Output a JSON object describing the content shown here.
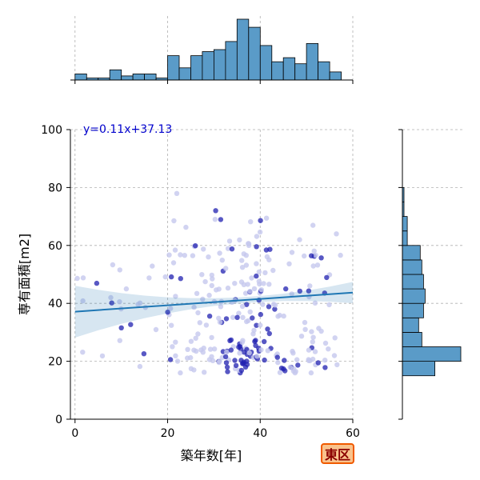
{
  "chart_data": {
    "type": "scatter",
    "xlabel": "築年数[年]",
    "ylabel": "専有面積[m2]",
    "xlim": [
      -1,
      60
    ],
    "ylim": [
      0,
      100
    ],
    "x_ticks": [
      "0",
      "20",
      "40",
      "60"
    ],
    "y_ticks": [
      "0",
      "20",
      "40",
      "60",
      "80",
      "100"
    ],
    "grid": true,
    "regression": {
      "equation": "y=0.11x+37.13",
      "slope": 0.11,
      "intercept": 37.13
    },
    "marginal_x_hist": {
      "bin_width": 2.5,
      "bins_start": 0,
      "counts": [
        3,
        1,
        1,
        5,
        2,
        3,
        3,
        1,
        12,
        6,
        12,
        14,
        15,
        19,
        30,
        26,
        17,
        9,
        11,
        8,
        18,
        9,
        4
      ]
    },
    "marginal_y_hist": {
      "bin_width": 5,
      "bins_start": 15,
      "counts": [
        20,
        36,
        12,
        10,
        13,
        14,
        13,
        12,
        11,
        3,
        3,
        1,
        1
      ]
    },
    "colors": {
      "point_light": "#c5c8ee",
      "point_dark": "#2020b0",
      "regression_line": "#1f77b4",
      "hist_fill": "#5a9bc8"
    },
    "badge_text": "東区"
  }
}
